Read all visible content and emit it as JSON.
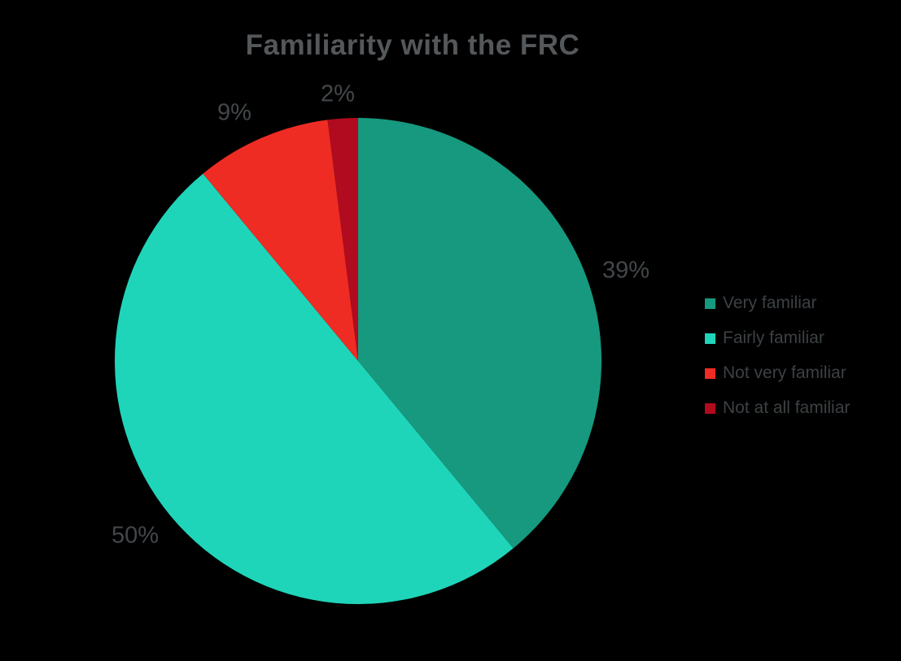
{
  "chart_data": {
    "type": "pie",
    "title": "Familiarity with the FRC",
    "categories": [
      "Very familiar",
      "Fairly familiar",
      "Not very familiar",
      "Not at all familiar"
    ],
    "values": [
      39,
      50,
      9,
      2
    ],
    "data_labels": [
      "39%",
      "50%",
      "9%",
      "2%"
    ],
    "colors": [
      "#16997F",
      "#1FD5B9",
      "#EE2C24",
      "#B00B1E"
    ],
    "start_angle_deg": 0,
    "direction": "clockwise",
    "legend_position": "right",
    "background_color": "#000000",
    "title_color": "#54585B",
    "label_color": "#43474A",
    "legend_text_color": "#3C4144"
  }
}
